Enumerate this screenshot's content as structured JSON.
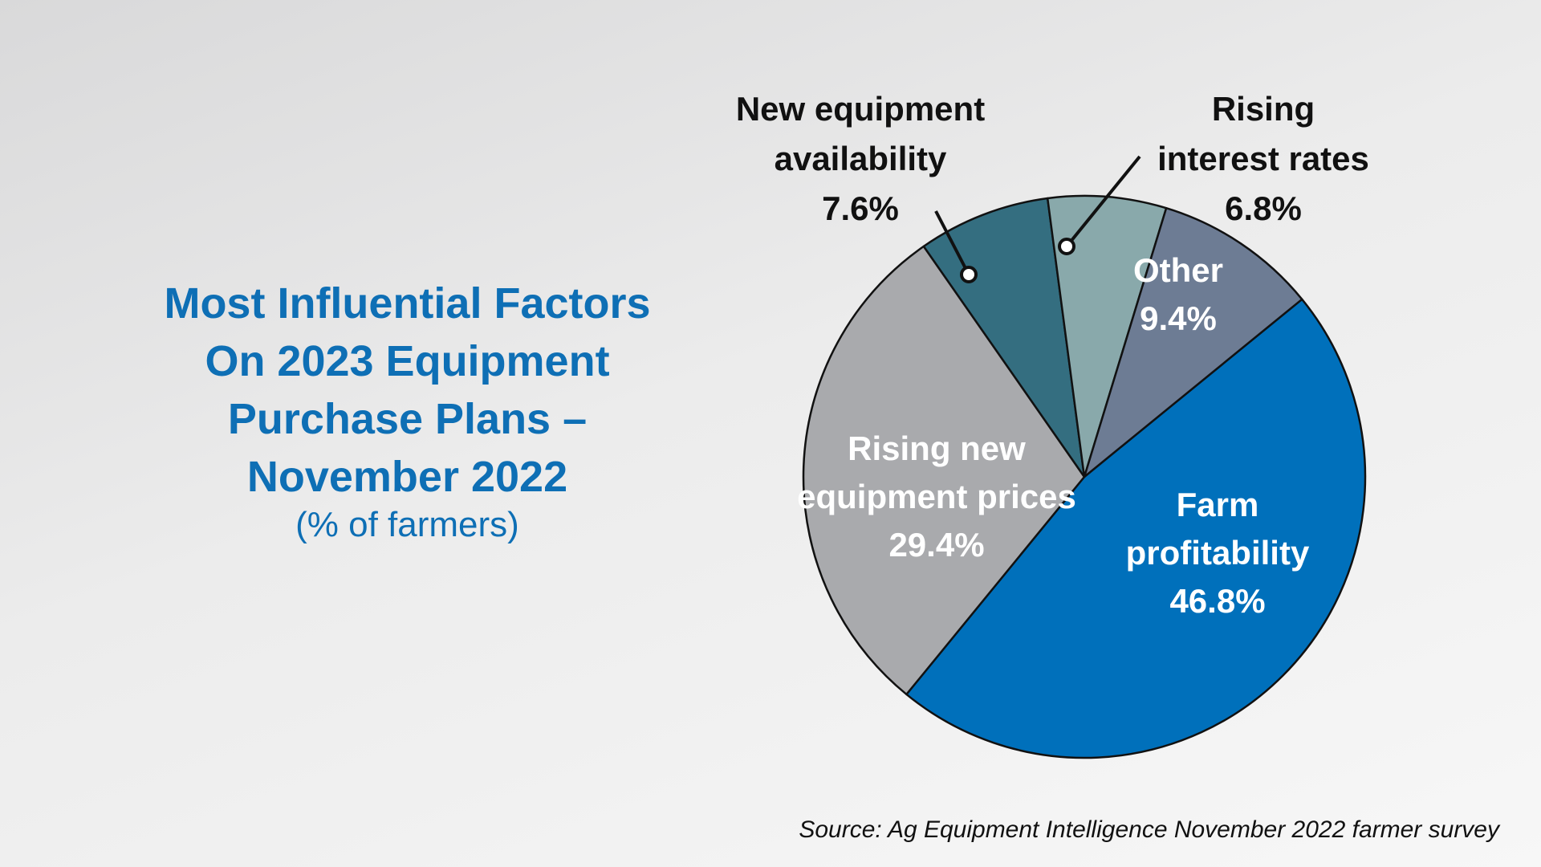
{
  "title": {
    "lines": [
      "Most Influential Factors",
      "On 2023 Equipment",
      "Purchase Plans –",
      "November 2022"
    ],
    "subtitle": "(% of farmers)"
  },
  "source": "Source: Ag Equipment Intelligence November 2022 farmer survey",
  "chart_data": {
    "type": "pie",
    "title": "Most Influential Factors On 2023 Equipment Purchase Plans – November 2022",
    "subtitle": "(% of farmers)",
    "slices": [
      {
        "label": "Farm profitability",
        "value": 46.8,
        "value_label": "46.8%",
        "color": "#0070bb",
        "label_color": "#ffffff",
        "label_lines": [
          "Farm",
          "profitability",
          "46.8%"
        ]
      },
      {
        "label": "Rising new equipment prices",
        "value": 29.4,
        "value_label": "29.4%",
        "color": "#a9aaad",
        "label_color": "#ffffff",
        "label_lines": [
          "Rising new",
          "equipment prices",
          "29.4%"
        ]
      },
      {
        "label": "New equipment availability",
        "value": 7.6,
        "value_label": "7.6%",
        "color": "#346e80",
        "label_color": "#111111",
        "label_lines": [
          "New equipment",
          "availability",
          "7.6%"
        ]
      },
      {
        "label": "Rising interest rates",
        "value": 6.8,
        "value_label": "6.8%",
        "color": "#89a9ab",
        "label_color": "#111111",
        "label_lines": [
          "Rising",
          "interest rates",
          "6.8%"
        ]
      },
      {
        "label": "Other",
        "value": 9.4,
        "value_label": "9.4%",
        "color": "#6d7c94",
        "label_color": "#ffffff",
        "label_lines": [
          "Other",
          "9.4%"
        ]
      }
    ]
  }
}
